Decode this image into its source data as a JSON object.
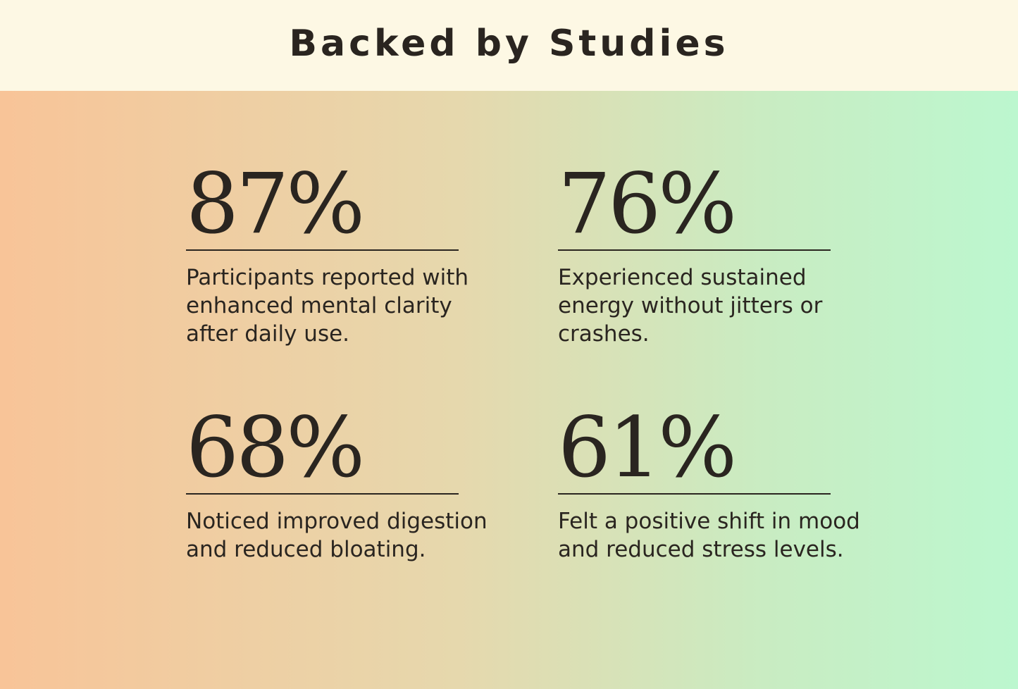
{
  "header": {
    "title": "Backed by Studies"
  },
  "stats": [
    {
      "value": "87%",
      "description": "Participants reported with enhanced mental clarity after daily use."
    },
    {
      "value": "76%",
      "description": "Experienced sustained energy without jitters or crashes."
    },
    {
      "value": "68%",
      "description": "Noticed improved digestion and reduced bloating."
    },
    {
      "value": "61%",
      "description": "Felt a positive shift in mood and reduced stress levels."
    }
  ]
}
